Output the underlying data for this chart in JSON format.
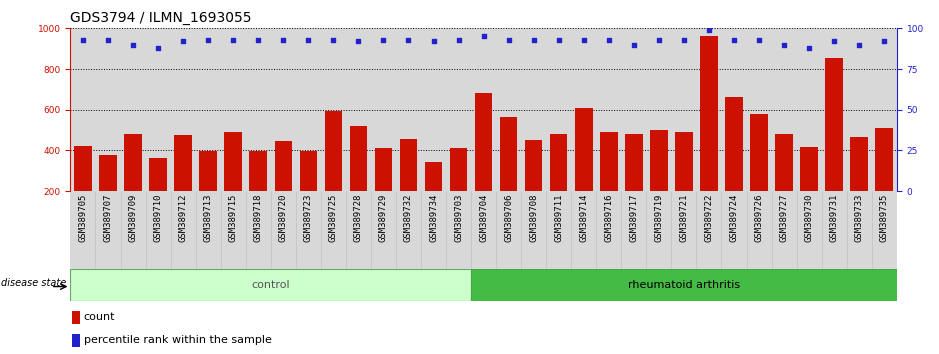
{
  "title": "GDS3794 / ILMN_1693055",
  "samples": [
    "GSM389705",
    "GSM389707",
    "GSM389709",
    "GSM389710",
    "GSM389712",
    "GSM389713",
    "GSM389715",
    "GSM389718",
    "GSM389720",
    "GSM389723",
    "GSM389725",
    "GSM389728",
    "GSM389729",
    "GSM389732",
    "GSM389734",
    "GSM389703",
    "GSM389704",
    "GSM389706",
    "GSM389708",
    "GSM389711",
    "GSM389714",
    "GSM389716",
    "GSM389717",
    "GSM389719",
    "GSM389721",
    "GSM389722",
    "GSM389724",
    "GSM389726",
    "GSM389727",
    "GSM389730",
    "GSM389731",
    "GSM389733",
    "GSM389735"
  ],
  "counts": [
    420,
    380,
    480,
    365,
    475,
    395,
    490,
    395,
    445,
    395,
    595,
    520,
    410,
    455,
    345,
    410,
    680,
    565,
    450,
    480,
    610,
    490,
    480,
    500,
    490,
    960,
    665,
    580,
    480,
    415,
    855,
    465,
    510
  ],
  "percentiles": [
    93,
    93,
    90,
    88,
    92,
    93,
    93,
    93,
    93,
    93,
    93,
    92,
    93,
    93,
    92,
    93,
    95,
    93,
    93,
    93,
    93,
    93,
    90,
    93,
    93,
    99,
    93,
    93,
    90,
    88,
    92,
    90,
    92
  ],
  "group_control_count": 16,
  "group_ra_count": 17,
  "bar_color": "#cc1100",
  "dot_color": "#2222cc",
  "control_bg": "#ccffcc",
  "ra_bg": "#44bb44",
  "ylim_left": [
    200,
    1000
  ],
  "ylim_right": [
    0,
    100
  ],
  "yticks_left": [
    200,
    400,
    600,
    800,
    1000
  ],
  "yticks_right": [
    0,
    25,
    50,
    75,
    100
  ],
  "ytick_grid": [
    400,
    600,
    800,
    1000
  ],
  "title_fontsize": 10,
  "tick_fontsize": 6.5,
  "label_fontsize": 8,
  "legend_fontsize": 8
}
